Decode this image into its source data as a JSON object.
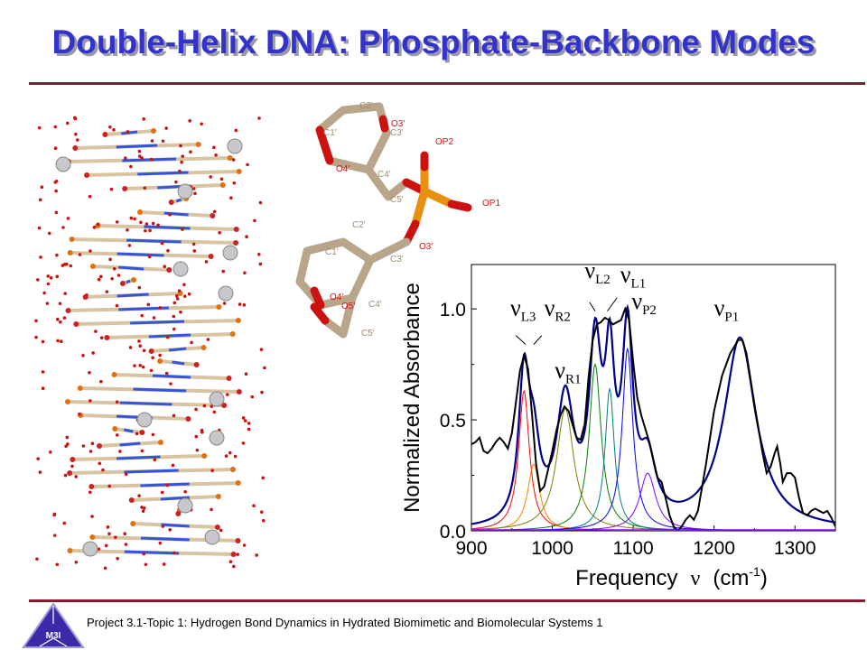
{
  "title": "Double-Helix DNA: Phosphate-Backbone Modes",
  "footer": {
    "text": "Project 3.1-Topic 1: Hydrogen  Bond Dynamics in Hydrated Biomimetic and Biomolecular Systems 1",
    "logo_text": "M3I"
  },
  "colors": {
    "title": "#3333cc",
    "rule": "#8b1a2e",
    "fit": "#00008b",
    "experiment": "#000000"
  },
  "molecule": {
    "labels": [
      "C2'",
      "O3'",
      "C3'",
      "C1'",
      "O4'",
      "C4'",
      "C5'",
      "OP2",
      "OP1",
      "O3'",
      "C2'",
      "C1'",
      "C3'",
      "O4'",
      "O5'",
      "C4'",
      "C5'"
    ]
  },
  "chart_data": {
    "type": "line",
    "xlabel": "Frequency",
    "xlabel_symbol": "ν",
    "xlabel_unit": "(cm",
    "xlabel_unit_exp": "-1",
    "xlabel_unit_close": ")",
    "ylabel": "Normalized Absorbance",
    "xlim": [
      900,
      1350
    ],
    "ylim": [
      0,
      1.2
    ],
    "xticks": [
      900,
      1000,
      1100,
      1200,
      1300
    ],
    "xtick_labels": [
      "900",
      "1000",
      "1100",
      "1200",
      "1300"
    ],
    "yticks": [
      0,
      0.5,
      1.0
    ],
    "ytick_labels": [
      "0.0",
      "0.5",
      "1.0"
    ],
    "grid": false,
    "experiment": {
      "color": "#000000",
      "x": [
        900,
        905,
        910,
        915,
        920,
        925,
        930,
        935,
        940,
        945,
        950,
        955,
        960,
        965,
        970,
        975,
        980,
        985,
        990,
        995,
        1000,
        1005,
        1010,
        1015,
        1020,
        1025,
        1030,
        1035,
        1040,
        1045,
        1050,
        1055,
        1060,
        1065,
        1070,
        1075,
        1080,
        1085,
        1090,
        1095,
        1100,
        1105,
        1110,
        1115,
        1120,
        1125,
        1130,
        1135,
        1140,
        1145,
        1150,
        1155,
        1160,
        1165,
        1170,
        1175,
        1180,
        1190,
        1200,
        1210,
        1220,
        1230,
        1235,
        1240,
        1250,
        1260,
        1265,
        1270,
        1275,
        1278,
        1282,
        1285,
        1290,
        1295,
        1300,
        1305,
        1310,
        1315,
        1320,
        1325,
        1330,
        1335,
        1340,
        1345,
        1350
      ],
      "y": [
        0.39,
        0.4,
        0.42,
        0.36,
        0.35,
        0.37,
        0.4,
        0.42,
        0.4,
        0.37,
        0.44,
        0.58,
        0.72,
        0.79,
        0.73,
        0.52,
        0.3,
        0.18,
        0.2,
        0.28,
        0.36,
        0.45,
        0.52,
        0.56,
        0.54,
        0.48,
        0.42,
        0.41,
        0.48,
        0.7,
        0.86,
        0.93,
        0.94,
        0.96,
        0.95,
        0.93,
        0.94,
        0.95,
        1.0,
        0.95,
        0.76,
        0.6,
        0.52,
        0.46,
        0.4,
        0.32,
        0.24,
        0.22,
        0.15,
        0.07,
        0.02,
        0.0,
        0.02,
        0.05,
        0.07,
        0.05,
        0.09,
        0.3,
        0.54,
        0.7,
        0.8,
        0.86,
        0.86,
        0.8,
        0.57,
        0.35,
        0.26,
        0.29,
        0.35,
        0.38,
        0.3,
        0.22,
        0.26,
        0.26,
        0.24,
        0.15,
        0.08,
        0.07,
        0.09,
        0.1,
        0.09,
        0.08,
        0.09,
        0.06,
        0.02
      ]
    },
    "fit": {
      "color": "#00008b",
      "description_sum_of_components": true
    },
    "components": [
      {
        "center": 965,
        "amplitude": 0.63,
        "hwhm": 8,
        "color": "#ff0000"
      },
      {
        "center": 977,
        "amplitude": 0.3,
        "hwhm": 9,
        "color": "#ff8000"
      },
      {
        "center": 1016,
        "amplitude": 0.55,
        "hwhm": 13,
        "color": "#808000"
      },
      {
        "center": 1053,
        "amplitude": 0.75,
        "hwhm": 9,
        "color": "#008000"
      },
      {
        "center": 1071,
        "amplitude": 0.64,
        "hwhm": 7,
        "color": "#008080"
      },
      {
        "center": 1093,
        "amplitude": 0.82,
        "hwhm": 8,
        "color": "#0000ff"
      },
      {
        "center": 1118,
        "amplitude": 0.26,
        "hwhm": 12,
        "color": "#8000ff"
      },
      {
        "center": 1232,
        "amplitude": 0.86,
        "hwhm": 24,
        "color": "#00008b"
      }
    ],
    "annotations": [
      {
        "label": "ν",
        "sub": "L3",
        "x": 948,
        "y": 0.97
      },
      {
        "label": "ν",
        "sub": "R2",
        "x": 990,
        "y": 0.97
      },
      {
        "label": "ν",
        "sub": "R1",
        "x": 1003,
        "y": 0.69
      },
      {
        "label": "ν",
        "sub": "L2",
        "x": 1040,
        "y": 1.14
      },
      {
        "label": "ν",
        "sub": "L1",
        "x": 1084,
        "y": 1.12
      },
      {
        "label": "ν",
        "sub": "P2",
        "x": 1098,
        "y": 1.0
      },
      {
        "label": "ν",
        "sub": "P1",
        "x": 1200,
        "y": 0.97
      }
    ]
  }
}
